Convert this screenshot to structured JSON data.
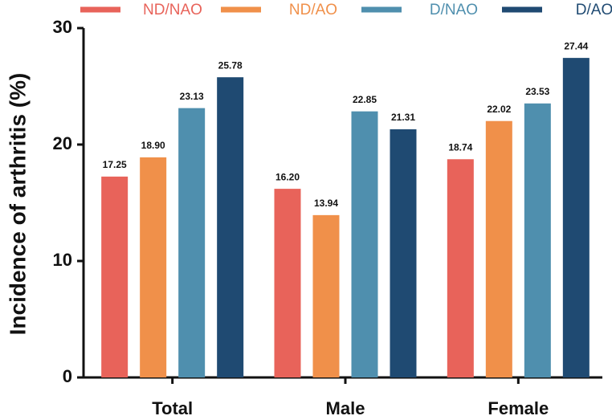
{
  "chart_data": {
    "type": "bar",
    "ylabel": "Incidence of arthritis (%)",
    "categories": [
      "Total",
      "Male",
      "Female"
    ],
    "series": [
      {
        "name": "ND/NAO",
        "color": "#e8635a",
        "values": [
          17.25,
          16.2,
          18.74
        ],
        "value_labels": [
          "17.25",
          "16.20",
          "18.74"
        ]
      },
      {
        "name": "ND/AO",
        "color": "#f0904a",
        "values": [
          18.9,
          13.94,
          22.02
        ],
        "value_labels": [
          "18.90",
          "13.94",
          "22.02"
        ]
      },
      {
        "name": "D/NAO",
        "color": "#4f8fae",
        "values": [
          23.13,
          22.85,
          23.53
        ],
        "value_labels": [
          "23.13",
          "22.85",
          "23.53"
        ]
      },
      {
        "name": "D/AO",
        "color": "#1f4a72",
        "values": [
          25.78,
          21.31,
          27.44
        ],
        "value_labels": [
          "25.78",
          "21.31",
          "27.44"
        ]
      }
    ],
    "ylim": [
      0,
      30
    ],
    "yticks": [
      0,
      10,
      20,
      30
    ],
    "grid": false
  }
}
